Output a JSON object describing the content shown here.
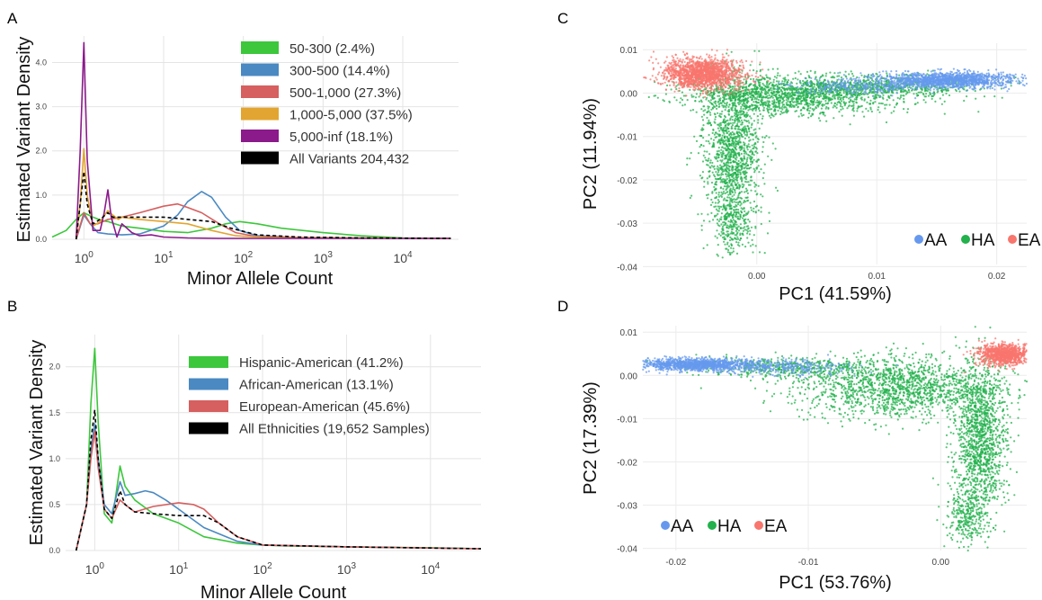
{
  "chart_data": [
    {
      "panel": "A",
      "type": "line",
      "xscale": "log",
      "xlabel": "Minor Allele Count",
      "ylabel": "Estimated Variant Density",
      "xlim": [
        0.4,
        50000
      ],
      "ylim": [
        0,
        4.6
      ],
      "xticks": [
        {
          "v": 1,
          "b": "10",
          "e": "0"
        },
        {
          "v": 10,
          "b": "10",
          "e": "1"
        },
        {
          "v": 100,
          "b": "10",
          "e": "2"
        },
        {
          "v": 1000,
          "b": "10",
          "e": "3"
        },
        {
          "v": 10000,
          "b": "10",
          "e": "4"
        }
      ],
      "yticks": [
        {
          "v": 0,
          "t": "0.0"
        },
        {
          "v": 1,
          "t": "1.0"
        },
        {
          "v": 2,
          "t": "2.0"
        },
        {
          "v": 3,
          "t": "3.0"
        },
        {
          "v": 4,
          "t": "4.0"
        }
      ],
      "legend": "top-right",
      "series": [
        {
          "name": "50-300 (2.4%)",
          "color": "#3cc73c",
          "x": [
            0.4,
            0.6,
            0.8,
            1,
            1.3,
            1.7,
            2,
            3,
            5,
            10,
            20,
            40,
            60,
            90,
            150,
            300,
            1000,
            3000,
            10000,
            40000
          ],
          "y": [
            0.05,
            0.2,
            0.45,
            0.6,
            0.5,
            0.42,
            0.4,
            0.3,
            0.25,
            0.18,
            0.15,
            0.25,
            0.35,
            0.4,
            0.35,
            0.25,
            0.15,
            0.08,
            0.03,
            0.02
          ]
        },
        {
          "name": "300-500 (14.4%)",
          "color": "#4a89c2",
          "x": [
            0.8,
            1,
            1.2,
            1.5,
            2,
            3,
            5,
            10,
            15,
            20,
            30,
            40,
            60,
            90,
            150,
            500,
            3000,
            10000,
            40000
          ],
          "y": [
            0,
            0.55,
            0.35,
            0.15,
            0.12,
            0.1,
            0.12,
            0.3,
            0.55,
            0.85,
            1.08,
            0.95,
            0.5,
            0.2,
            0.08,
            0.04,
            0.03,
            0.02,
            0.02
          ]
        },
        {
          "name": "500-1,000 (27.3%)",
          "color": "#d65f5f",
          "x": [
            0.8,
            1,
            1.2,
            1.5,
            2,
            3,
            5,
            10,
            15,
            20,
            30,
            50,
            80,
            150,
            500,
            3000,
            40000
          ],
          "y": [
            0,
            0.6,
            0.35,
            0.35,
            0.45,
            0.5,
            0.6,
            0.75,
            0.8,
            0.72,
            0.6,
            0.35,
            0.15,
            0.06,
            0.04,
            0.03,
            0.02
          ]
        },
        {
          "name": "1,000-5,000 (37.5%)",
          "color": "#e2a531",
          "x": [
            0.8,
            0.9,
            1,
            1.1,
            1.3,
            1.6,
            2,
            2.3,
            2.7,
            3,
            5,
            10,
            20,
            40,
            80,
            200,
            1000,
            40000
          ],
          "y": [
            0,
            0.8,
            2.05,
            1.0,
            0.3,
            0.4,
            0.65,
            0.55,
            0.45,
            0.5,
            0.45,
            0.4,
            0.35,
            0.2,
            0.08,
            0.04,
            0.03,
            0.02
          ]
        },
        {
          "name": "5,000-inf (18.1%)",
          "color": "#8b1a8b",
          "x": [
            0.8,
            0.9,
            1,
            1.1,
            1.3,
            1.6,
            1.8,
            2,
            2.2,
            2.6,
            3,
            4,
            5,
            7,
            10,
            20,
            50,
            100,
            1000,
            40000
          ],
          "y": [
            0,
            2.0,
            4.45,
            1.8,
            0.2,
            0.2,
            0.6,
            1.12,
            0.5,
            0.05,
            0.35,
            0.15,
            0.08,
            0.1,
            0.05,
            0.03,
            0.02,
            0.02,
            0.02,
            0.02
          ]
        },
        {
          "name": "All Variants 204,432",
          "color": "#000000",
          "dashed": true,
          "x": [
            0.8,
            0.9,
            1,
            1.1,
            1.3,
            1.6,
            2,
            2.3,
            3,
            5,
            10,
            20,
            40,
            70,
            150,
            500,
            3000,
            40000
          ],
          "y": [
            0,
            0.8,
            1.53,
            0.8,
            0.35,
            0.45,
            0.6,
            0.5,
            0.5,
            0.5,
            0.5,
            0.45,
            0.4,
            0.25,
            0.1,
            0.05,
            0.03,
            0.02
          ]
        }
      ]
    },
    {
      "panel": "B",
      "type": "line",
      "xscale": "log",
      "xlabel": "Minor Allele Count",
      "ylabel": "Estimated Variant Density",
      "xlim": [
        0.45,
        40000
      ],
      "ylim": [
        0,
        2.35
      ],
      "xticks": [
        {
          "v": 1,
          "b": "10",
          "e": "0"
        },
        {
          "v": 10,
          "b": "10",
          "e": "1"
        },
        {
          "v": 100,
          "b": "10",
          "e": "2"
        },
        {
          "v": 1000,
          "b": "10",
          "e": "3"
        },
        {
          "v": 10000,
          "b": "10",
          "e": "4"
        }
      ],
      "yticks": [
        {
          "v": 0,
          "t": "0.0"
        },
        {
          "v": 0.5,
          "t": "0.5"
        },
        {
          "v": 1,
          "t": "1.0"
        },
        {
          "v": 1.5,
          "t": "1.5"
        },
        {
          "v": 2,
          "t": "2.0"
        }
      ],
      "legend": "top-right",
      "series": [
        {
          "name": "Hispanic-American (41.2%)",
          "color": "#3cc73c",
          "x": [
            0.6,
            0.8,
            0.9,
            1,
            1.1,
            1.3,
            1.6,
            2,
            2.3,
            3,
            5,
            10,
            20,
            50,
            100,
            200,
            1000,
            10000,
            40000
          ],
          "y": [
            0,
            0.5,
            1.6,
            2.2,
            1.4,
            0.4,
            0.3,
            0.92,
            0.7,
            0.55,
            0.4,
            0.3,
            0.15,
            0.08,
            0.06,
            0.05,
            0.04,
            0.03,
            0.02
          ]
        },
        {
          "name": "African-American (13.1%)",
          "color": "#4a89c2",
          "x": [
            0.6,
            0.8,
            0.9,
            1,
            1.1,
            1.3,
            1.6,
            2,
            2.3,
            3,
            4,
            5,
            7,
            10,
            20,
            50,
            100,
            1000,
            40000
          ],
          "y": [
            0,
            0.5,
            1.1,
            1.38,
            1.0,
            0.5,
            0.4,
            0.75,
            0.6,
            0.62,
            0.65,
            0.63,
            0.55,
            0.45,
            0.25,
            0.1,
            0.06,
            0.04,
            0.02
          ]
        },
        {
          "name": "European-American (45.6%)",
          "color": "#d65f5f",
          "x": [
            0.6,
            0.8,
            0.9,
            1,
            1.1,
            1.3,
            1.6,
            2,
            2.3,
            3,
            5,
            10,
            15,
            20,
            30,
            50,
            100,
            1000,
            40000
          ],
          "y": [
            0,
            0.5,
            1.0,
            1.3,
            0.9,
            0.45,
            0.35,
            0.55,
            0.5,
            0.42,
            0.48,
            0.52,
            0.5,
            0.45,
            0.3,
            0.15,
            0.06,
            0.04,
            0.02
          ]
        },
        {
          "name": "All Ethnicities (19,652 Samples)",
          "color": "#000000",
          "dashed": true,
          "x": [
            0.6,
            0.8,
            0.9,
            1,
            1.1,
            1.3,
            1.6,
            2,
            2.3,
            3,
            5,
            10,
            20,
            30,
            50,
            100,
            1000,
            40000
          ],
          "y": [
            0,
            0.5,
            1.2,
            1.53,
            1.0,
            0.45,
            0.35,
            0.65,
            0.5,
            0.42,
            0.4,
            0.38,
            0.38,
            0.3,
            0.15,
            0.06,
            0.04,
            0.02
          ]
        }
      ]
    },
    {
      "panel": "C",
      "type": "scatter",
      "xlabel": "PC1 (41.59%)",
      "ylabel": "PC2 (11.94%)",
      "xlim": [
        -0.0095,
        0.0225
      ],
      "ylim": [
        -0.0395,
        0.0115
      ],
      "xticks": [
        {
          "v": 0,
          "t": "0.00"
        },
        {
          "v": 0.01,
          "t": "0.01"
        },
        {
          "v": 0.02,
          "t": "0.02"
        }
      ],
      "yticks": [
        {
          "v": 0.01,
          "t": "0.01"
        },
        {
          "v": 0,
          "t": "0.00"
        },
        {
          "v": -0.01,
          "t": "-0.01"
        },
        {
          "v": -0.02,
          "t": "-0.02"
        },
        {
          "v": -0.03,
          "t": "-0.03"
        },
        {
          "v": -0.04,
          "t": "-0.04"
        }
      ],
      "legend": "bottom-right",
      "series": [
        {
          "name": "AA",
          "color": "#6699ee",
          "clusters": [
            {
              "cx": 0.016,
              "cy": 0.003,
              "sx": 0.0028,
              "sy": 0.0009,
              "n": 1400
            },
            {
              "cx": 0.008,
              "cy": 0.0015,
              "sx": 0.003,
              "sy": 0.001,
              "n": 250
            }
          ]
        },
        {
          "name": "HA",
          "color": "#22b14c",
          "clusters": [
            {
              "cx": -0.002,
              "cy": -0.014,
              "sx": 0.0012,
              "sy": 0.009,
              "n": 1300
            },
            {
              "cx": 0.003,
              "cy": -0.0005,
              "sx": 0.0045,
              "sy": 0.0022,
              "n": 1500
            },
            {
              "cx": 0.011,
              "cy": 0.0015,
              "sx": 0.004,
              "sy": 0.0012,
              "n": 600
            },
            {
              "cx": -0.002,
              "cy": -0.03,
              "sx": 0.0008,
              "sy": 0.0035,
              "n": 250
            }
          ]
        },
        {
          "name": "EA",
          "color": "#f8766d",
          "clusters": [
            {
              "cx": -0.0045,
              "cy": 0.0045,
              "sx": 0.0016,
              "sy": 0.0018,
              "n": 1600
            }
          ]
        }
      ]
    },
    {
      "panel": "D",
      "type": "scatter",
      "xlabel": "PC1 (53.76%)",
      "ylabel": "PC2 (17.39%)",
      "xlim": [
        -0.0225,
        0.0065
      ],
      "ylim": [
        -0.0405,
        0.0115
      ],
      "xticks": [
        {
          "v": -0.02,
          "t": "-0.02"
        },
        {
          "v": -0.01,
          "t": "-0.01"
        },
        {
          "v": 0,
          "t": "0.00"
        }
      ],
      "yticks": [
        {
          "v": 0.01,
          "t": "0.01"
        },
        {
          "v": 0,
          "t": "0.00"
        },
        {
          "v": -0.01,
          "t": "-0.01"
        },
        {
          "v": -0.02,
          "t": "-0.02"
        },
        {
          "v": -0.03,
          "t": "-0.03"
        },
        {
          "v": -0.04,
          "t": "-0.04"
        }
      ],
      "legend": "bottom-left",
      "series": [
        {
          "name": "AA",
          "color": "#6699ee",
          "clusters": [
            {
              "cx": -0.0185,
              "cy": 0.0025,
              "sx": 0.0022,
              "sy": 0.0007,
              "n": 1200
            },
            {
              "cx": -0.012,
              "cy": 0.002,
              "sx": 0.0025,
              "sy": 0.0009,
              "n": 300
            }
          ]
        },
        {
          "name": "HA",
          "color": "#22b14c",
          "clusters": [
            {
              "cx": 0.003,
              "cy": -0.015,
              "sx": 0.001,
              "sy": 0.009,
              "n": 1300
            },
            {
              "cx": -0.003,
              "cy": -0.003,
              "sx": 0.0038,
              "sy": 0.0035,
              "n": 1500
            },
            {
              "cx": -0.011,
              "cy": 0.0018,
              "sx": 0.004,
              "sy": 0.0012,
              "n": 500
            },
            {
              "cx": 0.002,
              "cy": -0.033,
              "sx": 0.0007,
              "sy": 0.003,
              "n": 250
            }
          ]
        },
        {
          "name": "EA",
          "color": "#f8766d",
          "clusters": [
            {
              "cx": 0.0048,
              "cy": 0.0048,
              "sx": 0.0009,
              "sy": 0.0012,
              "n": 1000
            }
          ]
        }
      ]
    }
  ]
}
